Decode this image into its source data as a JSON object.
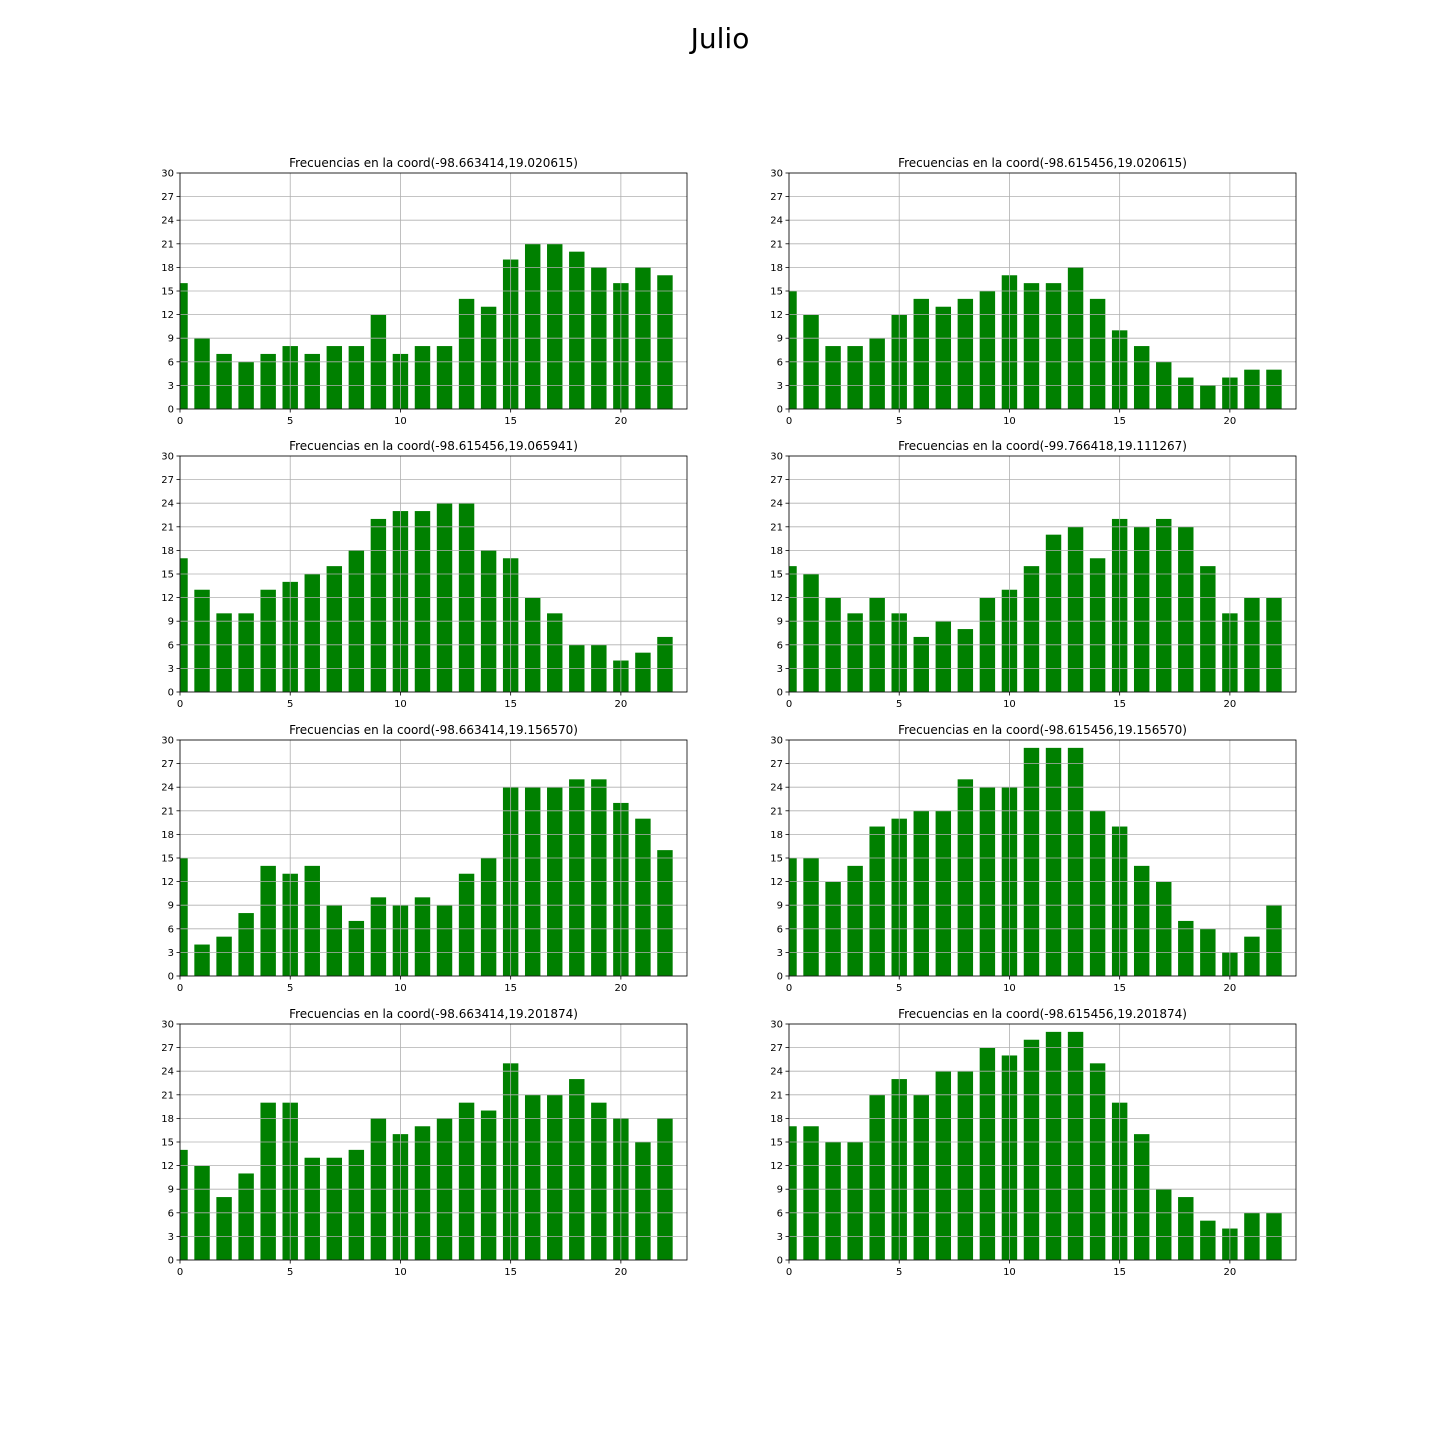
{
  "figure": {
    "title": "Julio",
    "bar_color": "#008000",
    "grid_color": "#b0b0b0"
  },
  "chart_data": [
    {
      "type": "bar",
      "title": "Frecuencias en la coord(-98.663414,19.020615)",
      "x": [
        0,
        1,
        2,
        3,
        4,
        5,
        6,
        7,
        8,
        9,
        10,
        11,
        12,
        13,
        14,
        15,
        16,
        17,
        18,
        19,
        20,
        21,
        22
      ],
      "values": [
        16,
        9,
        7,
        6,
        7,
        8,
        7,
        8,
        8,
        12,
        7,
        8,
        8,
        14,
        13,
        19,
        21,
        21,
        20,
        18,
        16,
        18,
        17
      ],
      "xlim": [
        0,
        23
      ],
      "ylim": [
        0,
        30
      ],
      "xticks": [
        0,
        5,
        10,
        15,
        20
      ],
      "yticks": [
        0,
        3,
        6,
        9,
        12,
        15,
        18,
        21,
        24,
        27,
        30
      ],
      "grid": true
    },
    {
      "type": "bar",
      "title": "Frecuencias en la coord(-98.615456,19.020615)",
      "x": [
        0,
        1,
        2,
        3,
        4,
        5,
        6,
        7,
        8,
        9,
        10,
        11,
        12,
        13,
        14,
        15,
        16,
        17,
        18,
        19,
        20,
        21,
        22
      ],
      "values": [
        15,
        12,
        8,
        8,
        9,
        12,
        14,
        13,
        14,
        15,
        17,
        16,
        16,
        18,
        14,
        10,
        8,
        6,
        4,
        3,
        4,
        5,
        5
      ],
      "xlim": [
        0,
        23
      ],
      "ylim": [
        0,
        30
      ],
      "xticks": [
        0,
        5,
        10,
        15,
        20
      ],
      "yticks": [
        0,
        3,
        6,
        9,
        12,
        15,
        18,
        21,
        24,
        27,
        30
      ],
      "grid": true
    },
    {
      "type": "bar",
      "title": "Frecuencias en la coord(-98.615456,19.065941)",
      "x": [
        0,
        1,
        2,
        3,
        4,
        5,
        6,
        7,
        8,
        9,
        10,
        11,
        12,
        13,
        14,
        15,
        16,
        17,
        18,
        19,
        20,
        21,
        22
      ],
      "values": [
        17,
        13,
        10,
        10,
        13,
        14,
        15,
        16,
        18,
        22,
        23,
        23,
        24,
        24,
        18,
        17,
        12,
        10,
        6,
        6,
        4,
        5,
        7
      ],
      "xlim": [
        0,
        23
      ],
      "ylim": [
        0,
        30
      ],
      "xticks": [
        0,
        5,
        10,
        15,
        20
      ],
      "yticks": [
        0,
        3,
        6,
        9,
        12,
        15,
        18,
        21,
        24,
        27,
        30
      ],
      "grid": true
    },
    {
      "type": "bar",
      "title": "Frecuencias en la coord(-99.766418,19.111267)",
      "x": [
        0,
        1,
        2,
        3,
        4,
        5,
        6,
        7,
        8,
        9,
        10,
        11,
        12,
        13,
        14,
        15,
        16,
        17,
        18,
        19,
        20,
        21,
        22
      ],
      "values": [
        16,
        15,
        12,
        10,
        12,
        10,
        7,
        9,
        8,
        12,
        13,
        16,
        20,
        21,
        17,
        22,
        21,
        22,
        21,
        16,
        10,
        12,
        12
      ],
      "xlim": [
        0,
        23
      ],
      "ylim": [
        0,
        30
      ],
      "xticks": [
        0,
        5,
        10,
        15,
        20
      ],
      "yticks": [
        0,
        3,
        6,
        9,
        12,
        15,
        18,
        21,
        24,
        27,
        30
      ],
      "grid": true
    },
    {
      "type": "bar",
      "title": "Frecuencias en la coord(-98.663414,19.156570)",
      "x": [
        0,
        1,
        2,
        3,
        4,
        5,
        6,
        7,
        8,
        9,
        10,
        11,
        12,
        13,
        14,
        15,
        16,
        17,
        18,
        19,
        20,
        21,
        22
      ],
      "values": [
        15,
        4,
        5,
        8,
        14,
        13,
        14,
        9,
        7,
        10,
        9,
        10,
        9,
        13,
        15,
        24,
        24,
        24,
        25,
        25,
        22,
        20,
        16
      ],
      "xlim": [
        0,
        23
      ],
      "ylim": [
        0,
        30
      ],
      "xticks": [
        0,
        5,
        10,
        15,
        20
      ],
      "yticks": [
        0,
        3,
        6,
        9,
        12,
        15,
        18,
        21,
        24,
        27,
        30
      ],
      "grid": true
    },
    {
      "type": "bar",
      "title": "Frecuencias en la coord(-98.615456,19.156570)",
      "x": [
        0,
        1,
        2,
        3,
        4,
        5,
        6,
        7,
        8,
        9,
        10,
        11,
        12,
        13,
        14,
        15,
        16,
        17,
        18,
        19,
        20,
        21,
        22
      ],
      "values": [
        15,
        15,
        12,
        14,
        19,
        20,
        21,
        21,
        25,
        24,
        24,
        29,
        29,
        29,
        21,
        19,
        14,
        12,
        7,
        6,
        3,
        5,
        9
      ],
      "xlim": [
        0,
        23
      ],
      "ylim": [
        0,
        30
      ],
      "xticks": [
        0,
        5,
        10,
        15,
        20
      ],
      "yticks": [
        0,
        3,
        6,
        9,
        12,
        15,
        18,
        21,
        24,
        27,
        30
      ],
      "grid": true
    },
    {
      "type": "bar",
      "title": "Frecuencias en la coord(-98.663414,19.201874)",
      "x": [
        0,
        1,
        2,
        3,
        4,
        5,
        6,
        7,
        8,
        9,
        10,
        11,
        12,
        13,
        14,
        15,
        16,
        17,
        18,
        19,
        20,
        21,
        22
      ],
      "values": [
        14,
        12,
        8,
        11,
        20,
        20,
        13,
        13,
        14,
        18,
        16,
        17,
        18,
        20,
        19,
        25,
        21,
        21,
        23,
        20,
        18,
        15,
        18
      ],
      "xlim": [
        0,
        23
      ],
      "ylim": [
        0,
        30
      ],
      "xticks": [
        0,
        5,
        10,
        15,
        20
      ],
      "yticks": [
        0,
        3,
        6,
        9,
        12,
        15,
        18,
        21,
        24,
        27,
        30
      ],
      "grid": true
    },
    {
      "type": "bar",
      "title": "Frecuencias en la coord(-98.615456,19.201874)",
      "x": [
        0,
        1,
        2,
        3,
        4,
        5,
        6,
        7,
        8,
        9,
        10,
        11,
        12,
        13,
        14,
        15,
        16,
        17,
        18,
        19,
        20,
        21,
        22
      ],
      "values": [
        17,
        17,
        15,
        15,
        21,
        23,
        21,
        24,
        24,
        27,
        26,
        28,
        29,
        29,
        25,
        20,
        16,
        9,
        8,
        5,
        4,
        6,
        6
      ],
      "xlim": [
        0,
        23
      ],
      "ylim": [
        0,
        30
      ],
      "xticks": [
        0,
        5,
        10,
        15,
        20
      ],
      "yticks": [
        0,
        3,
        6,
        9,
        12,
        15,
        18,
        21,
        24,
        27,
        30
      ],
      "grid": true
    }
  ]
}
